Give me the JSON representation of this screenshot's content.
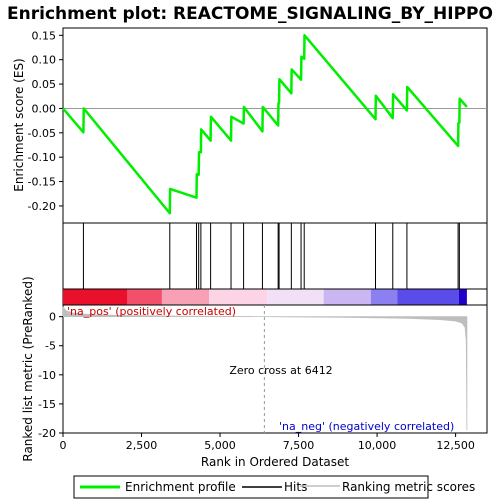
{
  "chart_data": {
    "type": "line",
    "title": "Enrichment plot: REACTOME_SIGNALING_BY_HIPPO",
    "es_panel": {
      "ylabel": "Enrichment score (ES)",
      "ylim": [
        -0.235,
        0.165
      ],
      "yticks": [
        -0.2,
        -0.15,
        -0.1,
        -0.05,
        0.0,
        0.05,
        0.1,
        0.15
      ],
      "ytick_labels": [
        "-0.20",
        "-0.15",
        "-0.10",
        "-0.05",
        "0.00",
        "0.05",
        "0.10",
        "0.15"
      ],
      "series": [
        {
          "name": "Enrichment profile",
          "color": "#00ee00",
          "x": [
            0,
            650,
            660,
            3400,
            3410,
            4250,
            4260,
            4320,
            4330,
            4390,
            4400,
            4700,
            4710,
            5350,
            5360,
            5750,
            5760,
            6350,
            6360,
            6850,
            6860,
            6880,
            6890,
            7270,
            7280,
            7580,
            7590,
            7680,
            7690,
            9950,
            9960,
            10500,
            10510,
            10950,
            10960,
            12580,
            12590,
            12620,
            12630,
            12860
          ],
          "y": [
            0.0,
            -0.049,
            0.0,
            -0.215,
            -0.165,
            -0.183,
            -0.135,
            -0.136,
            -0.09,
            -0.09,
            -0.043,
            -0.066,
            -0.017,
            -0.066,
            -0.017,
            -0.031,
            0.003,
            -0.047,
            0.003,
            -0.035,
            0.01,
            0.012,
            0.06,
            0.031,
            0.08,
            0.059,
            0.106,
            0.102,
            0.15,
            -0.022,
            0.026,
            -0.02,
            0.029,
            -0.004,
            0.044,
            -0.077,
            -0.03,
            -0.029,
            0.02,
            0.003
          ]
        }
      ]
    },
    "hits": [
      650,
      3400,
      4250,
      4320,
      4390,
      4700,
      5350,
      5750,
      6350,
      6850,
      6880,
      7270,
      7580,
      7680,
      9950,
      10500,
      10950,
      12580,
      12620
    ],
    "heatmap": {
      "colors": [
        "#e8102a",
        "#f2506a",
        "#f7a0b6",
        "#fcd4e6",
        "#f2e0f6",
        "#cab6f2",
        "#8c80f0",
        "#5a4ce8",
        "#2000c8"
      ],
      "breaks": [
        0,
        2050,
        3150,
        4650,
        6500,
        8300,
        9800,
        10650,
        12600,
        12860
      ]
    },
    "metric_panel": {
      "ylabel": "Ranked list metric (PreRanked)",
      "ylim": [
        -20,
        2
      ],
      "yticks": [
        0,
        -5,
        -10,
        -15,
        -20
      ],
      "ytick_labels": [
        "0",
        "-5",
        "-10",
        "-15",
        "-20"
      ],
      "fill_color": "#bebebe",
      "x": [
        0,
        100,
        300,
        600,
        1000,
        2000,
        3000,
        4000,
        5000,
        6000,
        6412,
        7000,
        8000,
        9000,
        10000,
        11000,
        12000,
        12500,
        12700,
        12800,
        12840,
        12860
      ],
      "y": [
        1.6,
        1.0,
        0.65,
        0.45,
        0.32,
        0.2,
        0.12,
        0.07,
        0.04,
        0.01,
        0.0,
        -0.03,
        -0.07,
        -0.12,
        -0.2,
        -0.3,
        -0.5,
        -0.75,
        -1.1,
        -1.8,
        -4.0,
        -19.5
      ]
    },
    "xaxis": {
      "xlabel": "Rank in Ordered Dataset",
      "xlim": [
        0,
        13500
      ],
      "xticks": [
        0,
        2500,
        5000,
        7500,
        10000,
        12500
      ],
      "xtick_labels": [
        "0",
        "2,500",
        "5,000",
        "7,500",
        "10,000",
        "12,500"
      ]
    },
    "annotations": {
      "pos_label": "'na_pos' (positively correlated)",
      "neg_label": "'na_neg' (negatively correlated)",
      "zero_cross": "Zero cross at 6412",
      "zero_cross_x": 6412,
      "pos_color": "#cc0000",
      "neg_color": "#0000cc"
    },
    "legend": {
      "entries": [
        {
          "label": "Enrichment profile",
          "color": "#00ee00"
        },
        {
          "label": "Hits",
          "color": "#000000"
        },
        {
          "label": "Ranking metric scores",
          "color": "#bebebe"
        }
      ]
    }
  }
}
